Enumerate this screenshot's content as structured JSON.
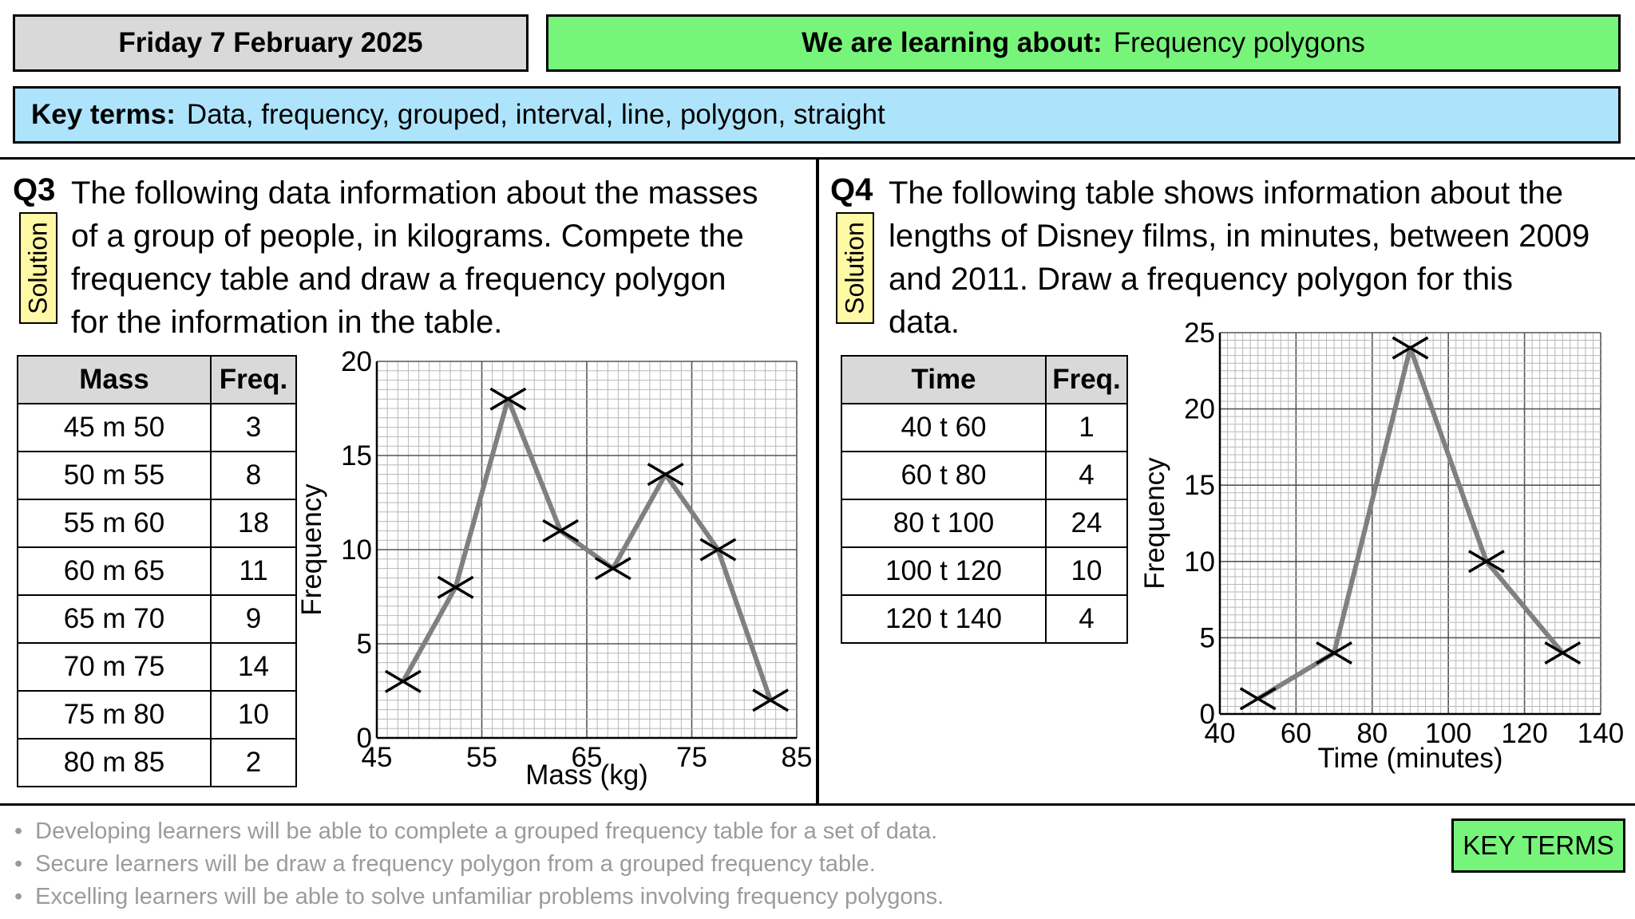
{
  "header": {
    "date": "Friday 7 February 2025",
    "objective_label": "We are learning about:",
    "objective": "Frequency polygons",
    "key_terms_label": "Key terms:",
    "key_terms": "Data, frequency, grouped, interval, line, polygon, straight"
  },
  "q3": {
    "number": "Q3",
    "solution_label": "Solution",
    "text_lines": [
      "The following data information about the masses",
      "of a group of people, in kilograms. Compete the",
      "frequency table and draw a frequency polygon",
      "for the information in the table."
    ],
    "table": {
      "headers": [
        "Mass",
        "Freq."
      ],
      "rows": [
        [
          "45  m  50",
          "3"
        ],
        [
          "50  m  55",
          "8"
        ],
        [
          "55  m  60",
          "18"
        ],
        [
          "60  m  65",
          "11"
        ],
        [
          "65  m  70",
          "9"
        ],
        [
          "70  m  75",
          "14"
        ],
        [
          "75  m  80",
          "10"
        ],
        [
          "80  m  85",
          "2"
        ]
      ]
    }
  },
  "q4": {
    "number": "Q4",
    "solution_label": "Solution",
    "text_lines": [
      "The following table shows information about the",
      "lengths of Disney films, in minutes, between 2009",
      "and 2011. Draw a frequency polygon for this",
      "data."
    ],
    "table": {
      "headers": [
        "Time",
        "Freq."
      ],
      "rows": [
        [
          "40  t  60",
          "1"
        ],
        [
          "60  t  80",
          "4"
        ],
        [
          "80  t  100",
          "24"
        ],
        [
          "100  t  120",
          "10"
        ],
        [
          "120  t  140",
          "4"
        ]
      ]
    }
  },
  "chart_data": [
    {
      "type": "line",
      "xlabel": "Mass (kg)",
      "ylabel": "Frequency",
      "xlim": [
        45,
        85
      ],
      "ylim": [
        0,
        20
      ],
      "x_ticks": [
        45,
        55,
        65,
        75,
        85
      ],
      "y_ticks": [
        0,
        5,
        10,
        15,
        20
      ],
      "grid": true,
      "marker": "cross",
      "line_color": "#808080",
      "x": [
        47.5,
        52.5,
        57.5,
        62.5,
        67.5,
        72.5,
        77.5,
        82.5
      ],
      "y": [
        3,
        8,
        18,
        11,
        9,
        14,
        10,
        2
      ]
    },
    {
      "type": "line",
      "xlabel": "Time (minutes)",
      "ylabel": "Frequency",
      "xlim": [
        40,
        140
      ],
      "ylim": [
        0,
        25
      ],
      "x_ticks": [
        40,
        60,
        80,
        100,
        120,
        140
      ],
      "y_ticks": [
        0,
        5,
        10,
        15,
        20,
        25
      ],
      "grid": true,
      "marker": "cross",
      "line_color": "#808080",
      "x": [
        50,
        70,
        90,
        110,
        130
      ],
      "y": [
        1,
        4,
        24,
        10,
        4
      ]
    }
  ],
  "footer": {
    "bullets": [
      "Developing learners will be able to complete a grouped frequency table for a set of data.",
      "Secure learners will be draw a frequency polygon from a grouped frequency table.",
      "Excelling learners will be able to solve unfamiliar problems involving frequency polygons."
    ],
    "key_terms_button": "KEY TERMS"
  },
  "colors": {
    "date_bg": "#d9d9d9",
    "objective_bg": "#77f57a",
    "key_terms_bg": "#aee4fb",
    "solution_bg": "#fff9a6",
    "table_header_bg": "#d9d9d9",
    "bullet_text": "#9b9b9b"
  }
}
